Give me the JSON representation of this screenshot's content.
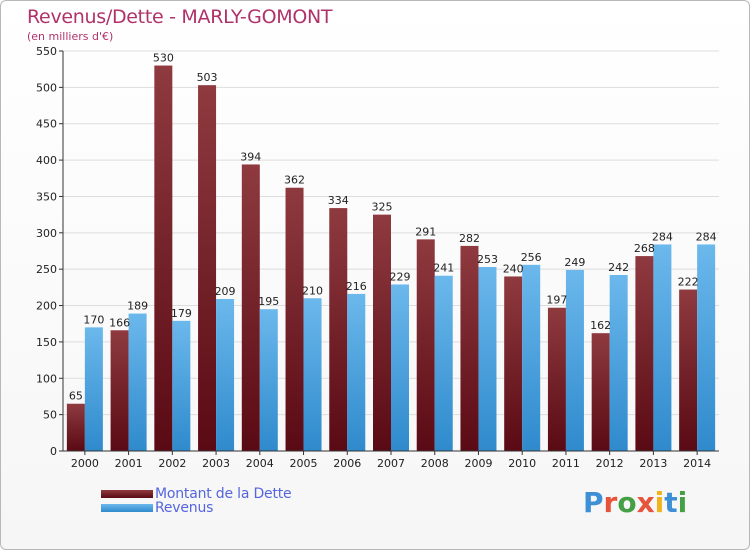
{
  "header": {
    "title": "Revenus/Dette - MARLY-GOMONT",
    "subtitle": "(en milliers d'€)"
  },
  "legend": {
    "debt_label": "Montant de la Dette",
    "revenue_label": "Revenus"
  },
  "brand": {
    "logo_text": "Proxiti",
    "logo_colors": [
      "#3d8fd6",
      "#e8543b",
      "#45a045",
      "#e8543b",
      "#f1b21b",
      "#3d8fd6",
      "#45a045"
    ]
  },
  "colors": {
    "debt_light": "#8e3a3f",
    "debt_dark": "#5a0a14",
    "revenue_light": "#6bb8ec",
    "revenue_dark": "#2f8acc",
    "grid": "#dddddd",
    "axis": "#333333"
  },
  "chart_data": {
    "type": "bar",
    "title": "Revenus/Dette - MARLY-GOMONT",
    "subtitle": "(en milliers d'€)",
    "xlabel": "",
    "ylabel": "(en milliers d'€)",
    "categories": [
      "2000",
      "2001",
      "2002",
      "2003",
      "2004",
      "2005",
      "2006",
      "2007",
      "2008",
      "2009",
      "2010",
      "2011",
      "2012",
      "2013",
      "2014"
    ],
    "series": [
      {
        "name": "Montant de la Dette",
        "values": [
          65,
          166,
          530,
          503,
          394,
          362,
          334,
          325,
          291,
          282,
          240,
          197,
          162,
          268,
          222
        ]
      },
      {
        "name": "Revenus",
        "values": [
          170,
          189,
          179,
          209,
          195,
          210,
          216,
          229,
          241,
          253,
          256,
          249,
          242,
          284,
          284
        ]
      }
    ],
    "ylim": [
      0,
      550
    ],
    "yticks": [
      0,
      50,
      100,
      150,
      200,
      250,
      300,
      350,
      400,
      450,
      500,
      550
    ],
    "grid": true,
    "legend_position": "bottom-left"
  }
}
